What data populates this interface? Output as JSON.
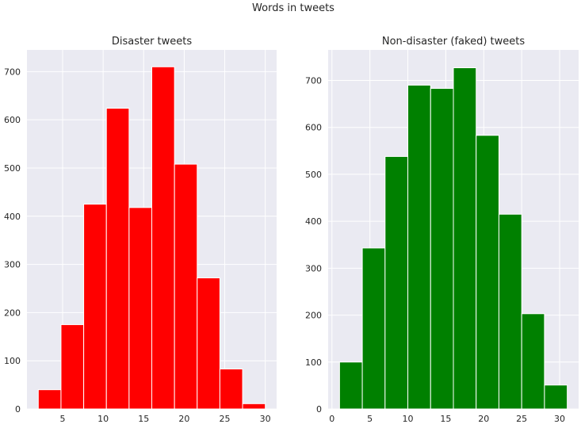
{
  "suptitle": "Words in tweets",
  "style": {
    "axes_bg": "#eaeaf2",
    "grid": "#ffffff"
  },
  "chart_data": [
    {
      "type": "bar",
      "title": "Disaster tweets",
      "color": "#ff0000",
      "xlim": [
        0.6,
        31.4
      ],
      "ylim": [
        0,
        745
      ],
      "xticks": [
        5,
        10,
        15,
        20,
        25,
        30
      ],
      "yticks": [
        0,
        100,
        200,
        300,
        400,
        500,
        600,
        700
      ],
      "bin_edges": [
        2,
        4.8,
        7.6,
        10.4,
        13.2,
        16,
        18.8,
        21.6,
        24.4,
        27.2,
        30
      ],
      "values": [
        40,
        175,
        425,
        624,
        418,
        710,
        508,
        272,
        83,
        11
      ],
      "grid": true
    },
    {
      "type": "bar",
      "title": "Non-disaster (faked) tweets",
      "color": "#008000",
      "xlim": [
        -0.5,
        32.5
      ],
      "ylim": [
        0,
        765
      ],
      "xticks": [
        0,
        5,
        10,
        15,
        20,
        25,
        30
      ],
      "yticks": [
        0,
        100,
        200,
        300,
        400,
        500,
        600,
        700
      ],
      "bin_edges": [
        1,
        4,
        7,
        10,
        13,
        16,
        19,
        22,
        25,
        28,
        31
      ],
      "values": [
        100,
        343,
        538,
        690,
        683,
        727,
        583,
        415,
        203,
        51
      ],
      "grid": true
    }
  ]
}
